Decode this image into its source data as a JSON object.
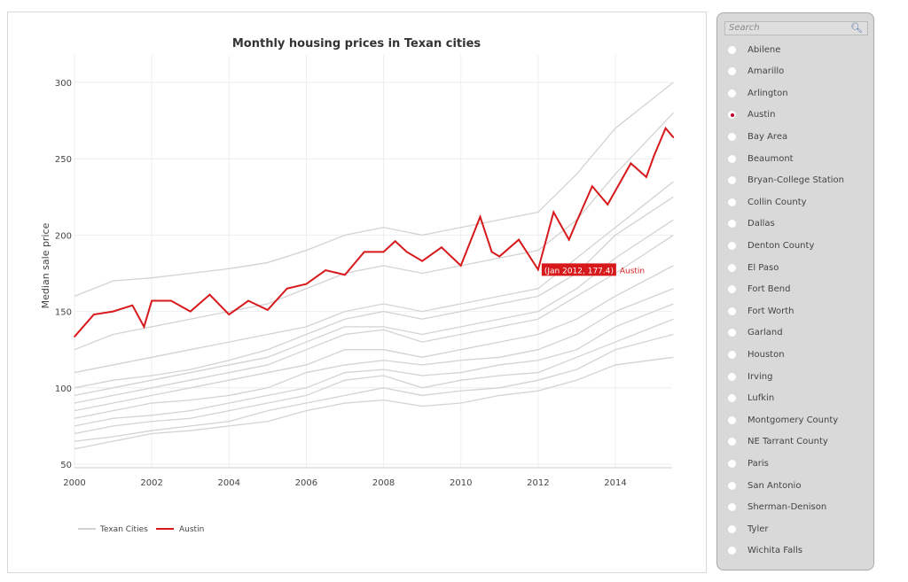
{
  "chart_data": {
    "type": "line",
    "title": "Monthly housing prices in Texan cities",
    "xlabel": "",
    "ylabel": "Median sale price",
    "xlim": [
      2000,
      2015.5
    ],
    "ylim": [
      50,
      305
    ],
    "x_ticks": [
      "2000",
      "2002",
      "2004",
      "2006",
      "2008",
      "2010",
      "2012",
      "2014"
    ],
    "y_ticks": [
      "50",
      "100",
      "150",
      "200",
      "250",
      "300"
    ],
    "grid": true,
    "legend": {
      "position": "bottom-left",
      "entries": [
        "Texan Cities",
        "Austin"
      ]
    },
    "colors": {
      "highlight": "#d7191c",
      "others": "#d3d3d3"
    },
    "highlight": {
      "name": "Austin",
      "x": [
        2000,
        2000.5,
        2001,
        2001.5,
        2001.8,
        2002,
        2002.5,
        2003,
        2003.5,
        2004,
        2004.5,
        2005,
        2005.5,
        2006,
        2006.5,
        2007,
        2007.5,
        2008,
        2008.3,
        2008.6,
        2009,
        2009.5,
        2010,
        2010.5,
        2010.8,
        2011,
        2011.5,
        2012,
        2012.4,
        2012.8,
        2013,
        2013.4,
        2013.8,
        2014,
        2014.4,
        2014.8,
        2015,
        2015.3,
        2015.5
      ],
      "y": [
        133.5,
        148,
        150,
        154,
        140,
        157,
        157,
        150,
        161,
        148,
        157,
        151,
        165,
        168,
        177,
        174,
        189,
        189,
        196,
        189,
        183,
        192,
        180,
        212,
        189,
        186,
        197,
        177.4,
        215,
        197,
        209,
        232,
        220,
        229,
        247,
        238,
        252,
        270,
        264
      ]
    },
    "tooltip": {
      "text": "(Jan 2012, 177.4)",
      "series": "Austin",
      "x": 2012,
      "y": 177.4
    },
    "others_x": [
      2000,
      2001,
      2002,
      2003,
      2004,
      2005,
      2006,
      2007,
      2008,
      2009,
      2010,
      2011,
      2012,
      2013,
      2014,
      2015.5
    ],
    "others": [
      [
        160,
        170,
        172,
        175,
        178,
        182,
        190,
        200,
        205,
        200,
        205,
        210,
        215,
        240,
        270,
        300
      ],
      [
        125,
        135,
        140,
        145,
        150,
        155,
        165,
        175,
        180,
        175,
        180,
        185,
        190,
        210,
        240,
        280
      ],
      [
        110,
        115,
        120,
        125,
        130,
        135,
        140,
        150,
        155,
        150,
        155,
        160,
        165,
        185,
        205,
        235
      ],
      [
        95,
        100,
        105,
        110,
        115,
        120,
        130,
        140,
        140,
        135,
        140,
        145,
        150,
        165,
        185,
        210
      ],
      [
        85,
        90,
        95,
        100,
        105,
        110,
        115,
        125,
        125,
        120,
        125,
        130,
        135,
        145,
        160,
        180
      ],
      [
        80,
        85,
        90,
        92,
        95,
        100,
        110,
        115,
        118,
        115,
        118,
        120,
        125,
        135,
        150,
        165
      ],
      [
        75,
        80,
        82,
        85,
        90,
        95,
        100,
        110,
        112,
        108,
        110,
        115,
        118,
        125,
        140,
        155
      ],
      [
        70,
        75,
        78,
        80,
        85,
        90,
        95,
        105,
        108,
        100,
        105,
        108,
        110,
        120,
        130,
        145
      ],
      [
        65,
        68,
        72,
        75,
        78,
        85,
        90,
        95,
        100,
        95,
        98,
        100,
        105,
        112,
        125,
        135
      ],
      [
        90,
        95,
        100,
        105,
        110,
        115,
        125,
        135,
        138,
        130,
        135,
        140,
        145,
        160,
        175,
        200
      ],
      [
        100,
        105,
        108,
        112,
        118,
        125,
        135,
        145,
        150,
        145,
        150,
        155,
        160,
        175,
        200,
        225
      ],
      [
        60,
        65,
        70,
        72,
        75,
        78,
        85,
        90,
        92,
        88,
        90,
        95,
        98,
        105,
        115,
        120
      ]
    ]
  },
  "sidebar": {
    "search_placeholder": "Search",
    "search_icon": "magnifier-icon",
    "selected": "Austin",
    "items": [
      "Abilene",
      "Amarillo",
      "Arlington",
      "Austin",
      "Bay Area",
      "Beaumont",
      "Bryan-College Station",
      "Collin County",
      "Dallas",
      "Denton County",
      "El Paso",
      "Fort Bend",
      "Fort Worth",
      "Garland",
      "Houston",
      "Irving",
      "Lufkin",
      "Montgomery County",
      "NE Tarrant County",
      "Paris",
      "San Antonio",
      "Sherman-Denison",
      "Tyler",
      "Wichita Falls"
    ]
  }
}
